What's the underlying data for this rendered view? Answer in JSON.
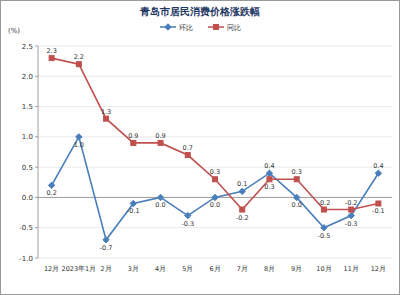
{
  "chart_data": {
    "type": "line",
    "title": "青岛市居民消费价格涨跌幅",
    "y_label": "(%)",
    "categories": [
      "12月",
      "2023年1月",
      "2月",
      "3月",
      "4月",
      "5月",
      "6月",
      "7月",
      "8月",
      "9月",
      "10月",
      "11月",
      "12月"
    ],
    "series": [
      {
        "name": "环比",
        "color": "#4a7ebb",
        "marker": "diamond",
        "values": [
          0.2,
          1.0,
          -0.7,
          -0.1,
          0.0,
          -0.3,
          0.0,
          0.1,
          0.4,
          0.0,
          -0.5,
          -0.3,
          0.4
        ],
        "value_labels": [
          "0.2",
          "1.0",
          "-0.7",
          "-0.1",
          "0.0",
          "-0.3",
          "0.0",
          "0.1",
          "0.4",
          "0.0",
          "-0.5",
          "-0.3",
          "0.4"
        ]
      },
      {
        "name": "同比",
        "color": "#c0504d",
        "marker": "square",
        "values": [
          2.3,
          2.2,
          1.3,
          0.9,
          0.9,
          0.7,
          0.3,
          -0.2,
          0.3,
          0.3,
          -0.2,
          -0.2,
          -0.1
        ],
        "value_labels": [
          "2.3",
          "2.2",
          "1.3",
          "0.9",
          "0.9",
          "0.7",
          "0.3",
          "-0.2",
          "0.3",
          "0.3",
          "-0.2",
          "-0.2",
          "-0.1"
        ]
      }
    ],
    "ylim": [
      -1.0,
      2.5
    ],
    "yticks": [
      {
        "value": -1.0,
        "label": "-1.0"
      },
      -0.5,
      {
        "value": 0.0,
        "label": "0.0"
      },
      0.5,
      {
        "value": 1.0,
        "label": "1.0"
      },
      1.5,
      {
        "value": 2.0,
        "label": "2.0"
      },
      2.5
    ],
    "grid": true,
    "legend": "top",
    "data_labels": true
  }
}
